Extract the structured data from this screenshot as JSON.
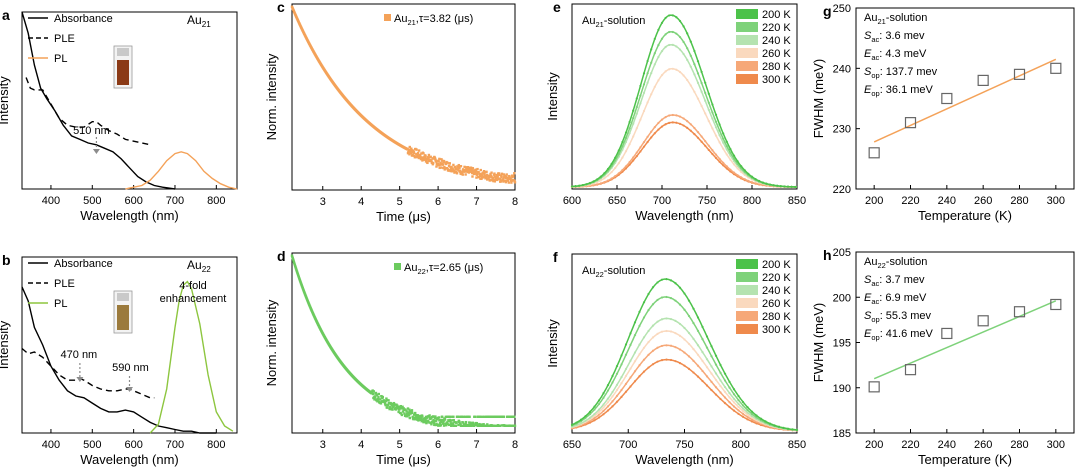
{
  "chart_data": [
    {
      "id": "a",
      "panel_label": "a",
      "type": "line",
      "xlabel": "Wavelength (nm)",
      "ylabel": "Intensity",
      "xlim": [
        330,
        850
      ],
      "ylim": [
        0,
        1
      ],
      "xticks": [
        400,
        500,
        600,
        700,
        800
      ],
      "tick_labels_x": [
        "400",
        "500",
        "600",
        "700",
        "800"
      ],
      "grid": false,
      "legend": [
        {
          "label": "Absorbance",
          "style": "solid",
          "color": "#000000"
        },
        {
          "label": "PLE",
          "style": "dashed",
          "color": "#000000"
        },
        {
          "label": "PL",
          "style": "solid",
          "color": "#F4A259"
        }
      ],
      "annotations": {
        "sample": "Au",
        "sample_sub": "21",
        "peak": "510 nm"
      },
      "annotation_points": {
        "peak_x": 510
      },
      "vial_color": "#8B3A16",
      "series": [
        {
          "name": "Absorbance",
          "color": "#000000",
          "style": "solid",
          "x": [
            330,
            345,
            360,
            375,
            390,
            410,
            430,
            450,
            470,
            490,
            510,
            530,
            550,
            570,
            590,
            610,
            630,
            650,
            670,
            700
          ],
          "y": [
            1.0,
            0.88,
            0.7,
            0.57,
            0.51,
            0.44,
            0.36,
            0.3,
            0.28,
            0.26,
            0.25,
            0.23,
            0.21,
            0.17,
            0.12,
            0.07,
            0.04,
            0.02,
            0.01,
            0.0
          ]
        },
        {
          "name": "PLE",
          "color": "#000000",
          "style": "dashed",
          "x": [
            340,
            350,
            360,
            380,
            400,
            420,
            440,
            460,
            480,
            500,
            510,
            520,
            540,
            560,
            580,
            600,
            620,
            640
          ],
          "y": [
            0.63,
            0.57,
            0.56,
            0.56,
            0.48,
            0.4,
            0.36,
            0.35,
            0.35,
            0.38,
            0.38,
            0.36,
            0.33,
            0.31,
            0.28,
            0.27,
            0.26,
            0.25
          ]
        },
        {
          "name": "PL",
          "color": "#F4A259",
          "style": "solid",
          "x": [
            580,
            600,
            620,
            640,
            660,
            680,
            700,
            715,
            730,
            750,
            770,
            790,
            810,
            830,
            850
          ],
          "y": [
            0.0,
            0.01,
            0.02,
            0.05,
            0.1,
            0.16,
            0.2,
            0.21,
            0.2,
            0.16,
            0.1,
            0.06,
            0.03,
            0.01,
            0.0
          ]
        }
      ]
    },
    {
      "id": "b",
      "panel_label": "b",
      "type": "line",
      "xlabel": "Wavelength (nm)",
      "ylabel": "Intensity",
      "xlim": [
        330,
        850
      ],
      "ylim": [
        0,
        1
      ],
      "xticks": [
        400,
        500,
        600,
        700,
        800
      ],
      "tick_labels_x": [
        "400",
        "500",
        "600",
        "700",
        "800"
      ],
      "grid": false,
      "legend": [
        {
          "label": "Absorbance",
          "style": "solid",
          "color": "#000000"
        },
        {
          "label": "PLE",
          "style": "dashed",
          "color": "#000000"
        },
        {
          "label": "PL",
          "style": "solid",
          "color": "#8DC63F"
        }
      ],
      "annotations": {
        "sample": "Au",
        "sample_sub": "22",
        "enh1": "4-fold",
        "enh2": "enhancement",
        "peak1": "470 nm",
        "peak2": "590 nm"
      },
      "annotation_points": {
        "peak1_x": 470,
        "peak2_x": 590
      },
      "vial_color": "#9B7A3C",
      "series": [
        {
          "name": "Absorbance",
          "color": "#000000",
          "style": "solid",
          "x": [
            330,
            345,
            360,
            380,
            400,
            420,
            440,
            460,
            480,
            500,
            520,
            540,
            560,
            580,
            600,
            620,
            640,
            660,
            680,
            700,
            720,
            740,
            760,
            780,
            800
          ],
          "y": [
            0.83,
            0.75,
            0.6,
            0.5,
            0.38,
            0.3,
            0.24,
            0.21,
            0.2,
            0.17,
            0.14,
            0.12,
            0.12,
            0.13,
            0.12,
            0.09,
            0.06,
            0.04,
            0.03,
            0.02,
            0.01,
            0.01,
            0.0,
            0.0,
            0.0
          ]
        },
        {
          "name": "PLE",
          "color": "#000000",
          "style": "dashed",
          "x": [
            330,
            345,
            360,
            380,
            400,
            420,
            440,
            460,
            470,
            480,
            500,
            520,
            540,
            560,
            580,
            590,
            600,
            620,
            640,
            650
          ],
          "y": [
            0.48,
            0.45,
            0.46,
            0.43,
            0.38,
            0.33,
            0.3,
            0.3,
            0.31,
            0.3,
            0.27,
            0.25,
            0.24,
            0.24,
            0.25,
            0.25,
            0.24,
            0.22,
            0.2,
            0.2
          ]
        },
        {
          "name": "PL",
          "color": "#8DC63F",
          "style": "solid",
          "x": [
            640,
            660,
            680,
            700,
            710,
            720,
            730,
            740,
            760,
            780,
            800,
            820,
            840
          ],
          "y": [
            0.0,
            0.05,
            0.25,
            0.6,
            0.75,
            0.84,
            0.86,
            0.82,
            0.62,
            0.33,
            0.12,
            0.04,
            0.01
          ]
        }
      ]
    },
    {
      "id": "c",
      "panel_label": "c",
      "type": "scatter",
      "xlabel": "Time (μs)",
      "ylabel": "Norm. intensity",
      "xlim": [
        2.2,
        8
      ],
      "ylim": [
        0,
        1
      ],
      "xticks": [
        3,
        4,
        5,
        6,
        7,
        8
      ],
      "tick_labels_x": [
        "3",
        "4",
        "5",
        "6",
        "7",
        "8"
      ],
      "grid": false,
      "legend": [
        {
          "label": "Au21, τ=3.82 (μs)",
          "color": "#F4A259"
        }
      ],
      "legend_parts": {
        "name": "Au",
        "sub": "21",
        "tau": ",τ=3.82 (μs)"
      },
      "series": [
        {
          "name": "Au21, τ=3.82 (μs)",
          "color": "#F4A259",
          "tau": 3.82,
          "decay": {
            "t_start": 2.2,
            "t_end": 8.0,
            "y_start": 0.985,
            "y_floor": 0.04
          }
        }
      ]
    },
    {
      "id": "d",
      "panel_label": "d",
      "type": "scatter",
      "xlabel": "Time (μs)",
      "ylabel": "Norm. intensity",
      "xlim": [
        2.2,
        8
      ],
      "ylim": [
        0,
        1
      ],
      "xticks": [
        3,
        4,
        5,
        6,
        7,
        8
      ],
      "tick_labels_x": [
        "3",
        "4",
        "5",
        "6",
        "7",
        "8"
      ],
      "grid": false,
      "legend": [
        {
          "label": "Au22, τ=2.65 (μs)",
          "color": "#6CCB5F"
        }
      ],
      "legend_parts": {
        "name": "Au",
        "sub": "22",
        "tau": ",τ=2.65 (μs)"
      },
      "series": [
        {
          "name": "Au22, τ=2.65 (μs)",
          "color": "#6CCB5F",
          "tau": 2.65,
          "decay": {
            "t_start": 2.2,
            "t_end": 8.0,
            "y_start": 0.985,
            "y_floor": 0.04
          }
        }
      ]
    },
    {
      "id": "e",
      "panel_label": "e",
      "type": "line",
      "title": "Au21-solution",
      "title_parts": {
        "name": "Au",
        "sub": "21",
        "rest": "-solution"
      },
      "xlabel": "Wavelength (nm)",
      "ylabel": "Intensity",
      "xlim": [
        600,
        850
      ],
      "ylim": [
        0,
        1
      ],
      "xticks": [
        600,
        650,
        700,
        750,
        800,
        850
      ],
      "tick_labels_x": [
        "600",
        "650",
        "700",
        "750",
        "800",
        "850"
      ],
      "grid": false,
      "legend_placement": "top-right",
      "series": [
        {
          "name": "200 K",
          "color": "#4CC24A",
          "peak": 710,
          "amplitude": 0.93
        },
        {
          "name": "220 K",
          "color": "#7ED27A",
          "peak": 710,
          "amplitude": 0.84
        },
        {
          "name": "240 K",
          "color": "#B5E3B0",
          "peak": 710,
          "amplitude": 0.77
        },
        {
          "name": "260 K",
          "color": "#FAD9BE",
          "peak": 711,
          "amplitude": 0.64
        },
        {
          "name": "280 K",
          "color": "#F6A878",
          "peak": 712,
          "amplitude": 0.39
        },
        {
          "name": "300 K",
          "color": "#EF8A4C",
          "peak": 712,
          "amplitude": 0.35
        }
      ]
    },
    {
      "id": "f",
      "panel_label": "f",
      "type": "line",
      "title": "Au22-solution",
      "title_parts": {
        "name": "Au",
        "sub": "22",
        "rest": "-solution"
      },
      "xlabel": "Wavelength (nm)",
      "ylabel": "Intensity",
      "xlim": [
        650,
        850
      ],
      "ylim": [
        0,
        1
      ],
      "xticks": [
        650,
        700,
        750,
        800,
        850
      ],
      "tick_labels_x": [
        "650",
        "700",
        "750",
        "800",
        "850"
      ],
      "grid": false,
      "legend_placement": "top-right",
      "series": [
        {
          "name": "200 K",
          "color": "#4CC24A",
          "peak": 733,
          "amplitude": 0.85
        },
        {
          "name": "220 K",
          "color": "#7ED27A",
          "peak": 733,
          "amplitude": 0.75
        },
        {
          "name": "240 K",
          "color": "#B5E3B0",
          "peak": 734,
          "amplitude": 0.63
        },
        {
          "name": "260 K",
          "color": "#FAD9BE",
          "peak": 734,
          "amplitude": 0.56
        },
        {
          "name": "280 K",
          "color": "#F6A878",
          "peak": 734,
          "amplitude": 0.48
        },
        {
          "name": "300 K",
          "color": "#EF8A4C",
          "peak": 734,
          "amplitude": 0.4
        }
      ]
    },
    {
      "id": "g",
      "panel_label": "g",
      "type": "scatter",
      "title": "Au21-solution",
      "title_parts": {
        "name": "Au",
        "sub": "21",
        "rest": "-solution"
      },
      "xlabel": "Temperature (K)",
      "ylabel": "FWHM (meV)",
      "xlim": [
        190,
        310
      ],
      "ylim": [
        220,
        250
      ],
      "xticks": [
        200,
        220,
        240,
        260,
        280,
        300
      ],
      "tick_labels_x": [
        "200",
        "220",
        "240",
        "260",
        "280",
        "300"
      ],
      "yticks": [
        220,
        230,
        240,
        250
      ],
      "tick_labels_y": [
        "220",
        "230",
        "240",
        "250"
      ],
      "grid": false,
      "fit_params": [
        {
          "sym": "S",
          "sub": "ac",
          "value": ": 3.6 mev"
        },
        {
          "sym": "E",
          "sub": "ac",
          "value": ": 4.3 meV"
        },
        {
          "sym": "S",
          "sub": "op",
          "value": ": 137.7 mev"
        },
        {
          "sym": "E",
          "sub": "op",
          "value": ": 36.1 meV"
        }
      ],
      "x": [
        200,
        220,
        240,
        260,
        280,
        300
      ],
      "y": [
        226,
        231,
        235,
        238,
        239,
        240
      ],
      "fit": {
        "color": "#F4A259",
        "x": [
          200,
          300
        ],
        "y": [
          227.8,
          241.5
        ]
      }
    },
    {
      "id": "h",
      "panel_label": "h",
      "type": "scatter",
      "title": "Au22-solution",
      "title_parts": {
        "name": "Au",
        "sub": "22",
        "rest": "-solution"
      },
      "xlabel": "Temperature (K)",
      "ylabel": "FWHM (meV)",
      "xlim": [
        190,
        310
      ],
      "ylim": [
        185,
        205
      ],
      "xticks": [
        200,
        220,
        240,
        260,
        280,
        300
      ],
      "tick_labels_x": [
        "200",
        "220",
        "240",
        "260",
        "280",
        "300"
      ],
      "yticks": [
        185,
        190,
        195,
        200,
        205
      ],
      "tick_labels_y": [
        "185",
        "190",
        "195",
        "200",
        "205"
      ],
      "grid": false,
      "fit_params": [
        {
          "sym": "S",
          "sub": "ac",
          "value": ": 3.7 mev"
        },
        {
          "sym": "E",
          "sub": "ac",
          "value": ": 6.9 meV"
        },
        {
          "sym": "S",
          "sub": "op",
          "value": ": 55.3 mev"
        },
        {
          "sym": "E",
          "sub": "op",
          "value": ": 41.6 meV"
        }
      ],
      "x": [
        200,
        220,
        240,
        260,
        280,
        300
      ],
      "y": [
        190.1,
        192.0,
        196.0,
        197.4,
        198.4,
        199.2
      ],
      "fit": {
        "color": "#7ED27A",
        "x": [
          200,
          300
        ],
        "y": [
          191.0,
          199.6
        ]
      }
    }
  ]
}
